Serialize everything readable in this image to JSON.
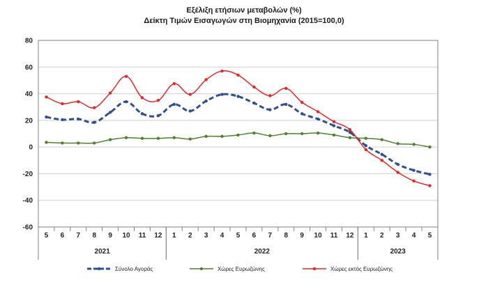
{
  "chart_data": {
    "type": "line",
    "title": "Εξέλιξη ετήσιων μεταβολών (%)",
    "subtitle": "Δείκτη Τιμών Εισαγωγών στη Βιομηχανία (2015=100,0)",
    "categories": [
      "5",
      "6",
      "7",
      "8",
      "9",
      "10",
      "11",
      "12",
      "1",
      "2",
      "3",
      "4",
      "5",
      "6",
      "7",
      "8",
      "9",
      "10",
      "11",
      "12",
      "1",
      "2",
      "3",
      "4",
      "5"
    ],
    "years": [
      {
        "label": "2021",
        "start": 0,
        "end": 7
      },
      {
        "label": "2022",
        "start": 8,
        "end": 19
      },
      {
        "label": "2023",
        "start": 20,
        "end": 24
      }
    ],
    "ylim": [
      -60,
      80
    ],
    "yticks": [
      -60,
      -40,
      -20,
      0,
      20,
      40,
      60,
      80
    ],
    "grid": true,
    "legend_position": "bottom",
    "series": [
      {
        "name": "Σύνολο Αγοράς",
        "color": "#2f4f8f",
        "style": "dashed",
        "values": [
          22.5,
          20.5,
          21.0,
          18.5,
          26.0,
          34.0,
          25.0,
          23.5,
          32.0,
          27.0,
          34.5,
          39.5,
          38.0,
          33.0,
          28.0,
          32.0,
          25.0,
          21.0,
          16.0,
          11.0,
          1.0,
          -5.5,
          -13.0,
          -17.5,
          -20.5
        ]
      },
      {
        "name": "Χώρες Ευρωζώνης",
        "color": "#4f7f2f",
        "style": "solid",
        "values": [
          3.5,
          3.0,
          3.0,
          3.0,
          5.5,
          7.0,
          6.5,
          6.5,
          7.0,
          6.0,
          8.0,
          8.0,
          9.0,
          10.5,
          8.5,
          10.0,
          10.0,
          10.5,
          9.0,
          7.0,
          6.5,
          5.5,
          2.5,
          2.0,
          0.0
        ]
      },
      {
        "name": "Χώρες εκτός Ευρωζώνης",
        "color": "#e02828",
        "style": "solid",
        "values": [
          37.5,
          32.5,
          34.0,
          29.5,
          40.5,
          53.0,
          37.0,
          35.0,
          47.5,
          39.5,
          50.5,
          57.0,
          54.0,
          45.0,
          38.5,
          44.0,
          33.5,
          26.5,
          19.0,
          13.0,
          -2.0,
          -10.0,
          -19.0,
          -25.5,
          -29.0
        ]
      }
    ]
  }
}
